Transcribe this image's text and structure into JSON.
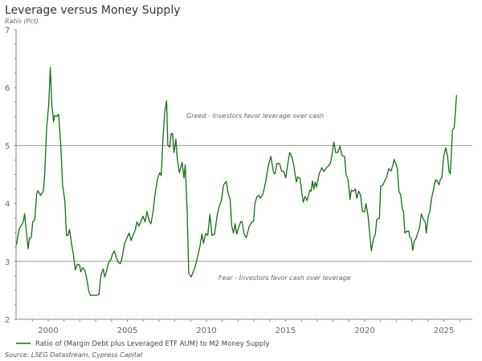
{
  "chart_data": {
    "type": "line",
    "title": "Leverage versus Money Supply",
    "ylabel": "Ratio (Pct)",
    "xlabel": "",
    "xlim": [
      1998,
      2026.9
    ],
    "ylim": [
      2,
      7
    ],
    "xticks": [
      2000,
      2005,
      2010,
      2015,
      2020,
      2025
    ],
    "yticks": [
      2,
      3,
      4,
      5,
      6,
      7
    ],
    "reference_lines": [
      {
        "value": 5,
        "label": "Greed - Investors favor leverage over cash"
      },
      {
        "value": 3,
        "label": "Fear - Investors favor cash over leverage"
      }
    ],
    "legend_placement": "bottom-left",
    "source": "Source: LSEG Datastream, Cypress Capital",
    "colors": {
      "series": "#1a6b1a",
      "reference": "#999999",
      "axis": "#888888"
    },
    "series": [
      {
        "name": "Ratio of (Margin Debt plus Leveraged ETF AUM) to M2 Money Supply",
        "x": [
          1998.0,
          1998.17,
          1998.42,
          1998.51,
          1998.73,
          1998.81,
          1998.93,
          1999.02,
          1999.15,
          1999.27,
          1999.35,
          1999.52,
          1999.69,
          1999.78,
          1999.9,
          2000.03,
          2000.13,
          2000.23,
          2000.34,
          2000.4,
          2000.54,
          2000.66,
          2000.79,
          2000.91,
          2001.05,
          2001.15,
          2001.25,
          2001.35,
          2001.47,
          2001.59,
          2001.72,
          2001.84,
          2001.98,
          2002.06,
          2002.18,
          2002.31,
          2002.43,
          2002.57,
          2002.67,
          2002.82,
          2002.99,
          2003.11,
          2003.21,
          2003.33,
          2003.47,
          2003.58,
          2003.72,
          2003.84,
          2003.96,
          2004.06,
          2004.18,
          2004.29,
          2004.43,
          2004.57,
          2004.68,
          2004.82,
          2004.97,
          2005.11,
          2005.24,
          2005.36,
          2005.5,
          2005.61,
          2005.73,
          2005.87,
          2005.99,
          2006.12,
          2006.24,
          2006.38,
          2006.49,
          2006.63,
          2006.76,
          2006.92,
          2007.05,
          2007.14,
          2007.26,
          2007.36,
          2007.48,
          2007.56,
          2007.68,
          2007.76,
          2007.86,
          2007.95,
          2008.07,
          2008.15,
          2008.29,
          2008.46,
          2008.58,
          2008.66,
          2008.78,
          2008.88,
          2009.03,
          2009.17,
          2009.3,
          2009.46,
          2009.59,
          2009.71,
          2009.81,
          2009.95,
          2010.08,
          2010.22,
          2010.35,
          2010.52,
          2010.66,
          2010.77,
          2010.94,
          2011.08,
          2011.25,
          2011.37,
          2011.5,
          2011.6,
          2011.71,
          2011.81,
          2011.91,
          2012.04,
          2012.16,
          2012.25,
          2012.38,
          2012.52,
          2012.69,
          2012.86,
          2012.98,
          2013.06,
          2013.2,
          2013.31,
          2013.4,
          2013.57,
          2013.74,
          2013.91,
          2014.07,
          2014.24,
          2014.33,
          2014.45,
          2014.62,
          2014.75,
          2014.89,
          2015.01,
          2015.12,
          2015.26,
          2015.39,
          2015.51,
          2015.68,
          2015.77,
          2015.9,
          2016.02,
          2016.11,
          2016.24,
          2016.36,
          2016.53,
          2016.61,
          2016.7,
          2016.78,
          2016.87,
          2016.95,
          2017.12,
          2017.29,
          2017.41,
          2017.54,
          2017.71,
          2017.83,
          2017.93,
          2018.05,
          2018.17,
          2018.3,
          2018.44,
          2018.56,
          2018.73,
          2018.81,
          2018.95,
          2019.07,
          2019.15,
          2019.29,
          2019.41,
          2019.49,
          2019.62,
          2019.74,
          2019.86,
          2020.0,
          2020.08,
          2020.22,
          2020.34,
          2020.42,
          2020.5,
          2020.59,
          2020.67,
          2020.76,
          2020.84,
          2020.93,
          2021.01,
          2021.15,
          2021.27,
          2021.39,
          2021.52,
          2021.66,
          2021.77,
          2021.86,
          2021.99,
          2022.06,
          2022.16,
          2022.28,
          2022.37,
          2022.45,
          2022.54,
          2022.65,
          2022.79,
          2022.84,
          2022.94,
          2023.04,
          2023.13,
          2023.25,
          2023.35,
          2023.47,
          2023.58,
          2023.72,
          2023.82,
          2023.89,
          2024.01,
          2024.11,
          2024.23,
          2024.35,
          2024.48,
          2024.57,
          2024.7,
          2024.77,
          2024.87,
          2024.99,
          2025.12,
          2025.24,
          2025.33,
          2025.41,
          2025.55,
          2025.66,
          2025.8
        ],
        "y": [
          3.29,
          3.56,
          3.68,
          3.82,
          3.22,
          3.4,
          3.41,
          3.68,
          3.72,
          4.16,
          4.22,
          4.14,
          4.21,
          4.51,
          5.29,
          5.7,
          6.35,
          5.7,
          5.41,
          5.52,
          5.5,
          5.54,
          5.01,
          4.32,
          4.05,
          3.45,
          3.45,
          3.55,
          3.31,
          3.12,
          2.85,
          2.95,
          2.94,
          2.82,
          2.89,
          2.85,
          2.71,
          2.48,
          2.41,
          2.42,
          2.41,
          2.42,
          2.43,
          2.76,
          2.87,
          2.73,
          2.87,
          2.99,
          3.03,
          3.12,
          3.18,
          3.08,
          2.98,
          2.96,
          3.08,
          3.31,
          3.4,
          3.49,
          3.36,
          3.45,
          3.54,
          3.68,
          3.61,
          3.7,
          3.78,
          3.68,
          3.86,
          3.7,
          3.65,
          3.86,
          4.18,
          4.44,
          4.53,
          4.48,
          5.15,
          5.57,
          5.77,
          5.01,
          4.97,
          5.2,
          5.21,
          4.88,
          5.11,
          4.78,
          4.53,
          4.71,
          4.44,
          4.67,
          3.86,
          2.8,
          2.73,
          2.82,
          2.92,
          3.1,
          3.26,
          3.47,
          3.31,
          3.48,
          3.45,
          3.81,
          3.45,
          3.47,
          3.77,
          3.91,
          4.05,
          4.32,
          4.38,
          4.18,
          4.07,
          3.61,
          3.49,
          3.65,
          3.47,
          3.59,
          3.68,
          3.69,
          3.47,
          3.41,
          3.59,
          3.68,
          3.69,
          4.0,
          4.12,
          4.14,
          4.09,
          4.16,
          4.37,
          4.65,
          4.81,
          4.53,
          4.51,
          4.69,
          4.69,
          4.56,
          4.55,
          4.44,
          4.65,
          4.88,
          4.81,
          4.67,
          4.37,
          4.46,
          4.44,
          4.21,
          4.02,
          4.12,
          4.05,
          4.23,
          4.21,
          4.39,
          4.25,
          4.37,
          4.28,
          4.51,
          4.62,
          4.55,
          4.6,
          4.65,
          4.69,
          4.83,
          5.06,
          4.88,
          4.88,
          4.99,
          4.83,
          4.81,
          4.51,
          4.41,
          4.07,
          4.23,
          4.21,
          4.25,
          4.09,
          4.21,
          4.14,
          3.86,
          3.86,
          4.0,
          3.77,
          3.4,
          3.18,
          3.31,
          3.42,
          3.47,
          3.72,
          3.74,
          3.74,
          4.3,
          4.32,
          4.39,
          4.46,
          4.6,
          4.56,
          4.65,
          4.76,
          4.67,
          4.6,
          4.21,
          4.14,
          3.91,
          3.86,
          3.49,
          3.52,
          3.52,
          3.42,
          3.4,
          3.19,
          3.35,
          3.4,
          3.49,
          3.59,
          3.82,
          3.72,
          3.68,
          3.49,
          3.77,
          3.86,
          4.09,
          4.25,
          4.41,
          4.39,
          4.32,
          4.41,
          4.44,
          4.81,
          4.96,
          4.81,
          4.55,
          4.51,
          5.27,
          5.31,
          5.87
        ]
      }
    ]
  }
}
